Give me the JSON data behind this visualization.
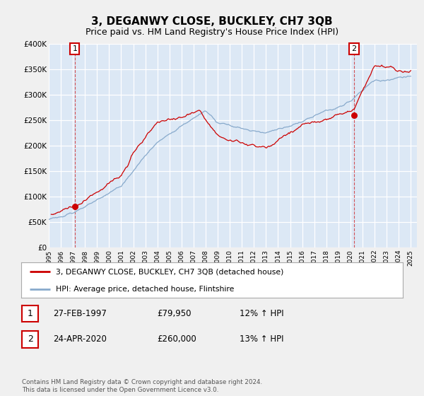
{
  "title": "3, DEGANWY CLOSE, BUCKLEY, CH7 3QB",
  "subtitle": "Price paid vs. HM Land Registry's House Price Index (HPI)",
  "ylim": [
    0,
    400000
  ],
  "xlim_start": 1995.0,
  "xlim_end": 2025.5,
  "yticks": [
    0,
    50000,
    100000,
    150000,
    200000,
    250000,
    300000,
    350000,
    400000
  ],
  "ytick_labels": [
    "£0",
    "£50K",
    "£100K",
    "£150K",
    "£200K",
    "£250K",
    "£300K",
    "£350K",
    "£400K"
  ],
  "plot_bg_color": "#dce8f5",
  "grid_color": "#ffffff",
  "fig_bg_color": "#f0f0f0",
  "red_line_color": "#cc0000",
  "blue_line_color": "#88aacc",
  "sale1_year": 1997.16,
  "sale1_price": 79950,
  "sale2_year": 2020.3,
  "sale2_price": 260000,
  "legend_red_label": "3, DEGANWY CLOSE, BUCKLEY, CH7 3QB (detached house)",
  "legend_blue_label": "HPI: Average price, detached house, Flintshire",
  "table_row1_num": "1",
  "table_row1_date": "27-FEB-1997",
  "table_row1_price": "£79,950",
  "table_row1_hpi": "12% ↑ HPI",
  "table_row2_num": "2",
  "table_row2_date": "24-APR-2020",
  "table_row2_price": "£260,000",
  "table_row2_hpi": "13% ↑ HPI",
  "footer_line1": "Contains HM Land Registry data © Crown copyright and database right 2024.",
  "footer_line2": "This data is licensed under the Open Government Licence v3.0.",
  "title_fontsize": 11,
  "subtitle_fontsize": 9
}
